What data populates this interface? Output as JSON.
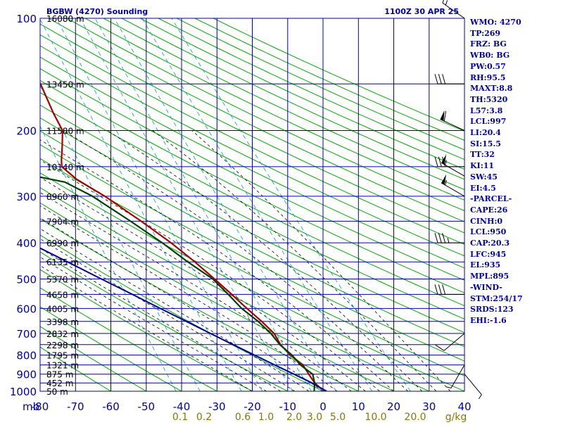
{
  "chart_data": {
    "type": "skew-t log-p sounding",
    "title": "BGBW (4270) Sounding",
    "valid_time": "1100Z 30 APR 25",
    "pressure_axis": {
      "unit_label": "mb",
      "ticks": [
        100,
        200,
        300,
        400,
        500,
        600,
        700,
        800,
        900,
        1000
      ],
      "range": [
        100,
        1000
      ],
      "scale": "log"
    },
    "temperature_axis": {
      "ticks": [
        -80,
        -70,
        -60,
        -50,
        -40,
        -30,
        -20,
        -10,
        0,
        10,
        20,
        30,
        40
      ],
      "range": [
        -80,
        40
      ]
    },
    "mixing_ratio_axis": {
      "labels": [
        "0.1",
        "0.2",
        "0.6",
        "1.0",
        "2.0",
        "3.0",
        "5.0",
        "10.0",
        "20.0"
      ],
      "values": [
        0.1,
        0.2,
        0.6,
        1.0,
        2.0,
        3.0,
        5.0,
        10.0,
        20.0
      ],
      "unit": "g/kg"
    },
    "height_labels": [
      {
        "p": 100,
        "text": "16080 m"
      },
      {
        "p": 150,
        "text": "13450 m"
      },
      {
        "p": 200,
        "text": "11580 m"
      },
      {
        "p": 250,
        "text": "10140 m"
      },
      {
        "p": 300,
        "text": "8960 m"
      },
      {
        "p": 350,
        "text": "7904 m"
      },
      {
        "p": 400,
        "text": "6990 m"
      },
      {
        "p": 450,
        "text": "6135 m"
      },
      {
        "p": 500,
        "text": "5370 m"
      },
      {
        "p": 550,
        "text": "4658 m"
      },
      {
        "p": 600,
        "text": "4005 m"
      },
      {
        "p": 650,
        "text": "3398 m"
      },
      {
        "p": 700,
        "text": "2832 m"
      },
      {
        "p": 750,
        "text": "2298 m"
      },
      {
        "p": 800,
        "text": "1795 m"
      },
      {
        "p": 850,
        "text": "1321 m"
      },
      {
        "p": 900,
        "text": "875 m"
      },
      {
        "p": 950,
        "text": "452 m"
      },
      {
        "p": 1000,
        "text": "50 m"
      }
    ],
    "series": [
      {
        "name": "Temperature",
        "color": "#aa0000",
        "points": [
          [
            1000,
            1.0
          ],
          [
            980,
            -0.5
          ],
          [
            950,
            -1.6
          ],
          [
            900,
            -2.5
          ],
          [
            850,
            -3.3
          ],
          [
            800,
            -6.0
          ],
          [
            750,
            -7.8
          ],
          [
            700,
            -8.6
          ],
          [
            650,
            -11.0
          ],
          [
            600,
            -14.0
          ],
          [
            550,
            -17.0
          ],
          [
            500,
            -20.5
          ],
          [
            450,
            -24.5
          ],
          [
            400,
            -29.5
          ],
          [
            350,
            -36.0
          ],
          [
            300,
            -44.0
          ],
          [
            270,
            -50.5
          ],
          [
            250,
            -53.5
          ],
          [
            240,
            -53.0
          ],
          [
            220,
            -51.5
          ],
          [
            200,
            -50.0
          ],
          [
            180,
            -51.0
          ],
          [
            150,
            -52.0
          ],
          [
            120,
            -53.5
          ],
          [
            100,
            -55.0
          ]
        ]
      },
      {
        "name": "Dewpoint",
        "color": "#004000",
        "points": [
          [
            1000,
            -2.5
          ],
          [
            950,
            -1.6
          ],
          [
            900,
            -1.4
          ],
          [
            850,
            -4.0
          ],
          [
            800,
            -5.5
          ],
          [
            750,
            -8.0
          ],
          [
            700,
            -9.5
          ],
          [
            650,
            -12.0
          ],
          [
            600,
            -15.5
          ],
          [
            550,
            -18.0
          ],
          [
            500,
            -21.0
          ],
          [
            450,
            -26.5
          ],
          [
            400,
            -32.0
          ],
          [
            350,
            -39.0
          ],
          [
            300,
            -47.5
          ],
          [
            275,
            -54.0
          ],
          [
            260,
            -66.0
          ],
          [
            250,
            -67.5
          ],
          [
            230,
            -70.5
          ],
          [
            200,
            -79.0
          ]
        ]
      },
      {
        "name": "Parcel",
        "color": "#000099",
        "points": [
          [
            1000,
            1.0
          ],
          [
            950,
            -2.4
          ],
          [
            900,
            -6.7
          ],
          [
            850,
            -11.3
          ],
          [
            800,
            -16.1
          ],
          [
            750,
            -21.2
          ],
          [
            700,
            -26.6
          ],
          [
            650,
            -32.3
          ],
          [
            600,
            -38.5
          ],
          [
            550,
            -45.1
          ],
          [
            500,
            -52.5
          ],
          [
            450,
            -60.5
          ],
          [
            400,
            -69.5
          ],
          [
            350,
            -79.8
          ],
          [
            300,
            -91.8
          ],
          [
            262,
            -103.0
          ]
        ]
      }
    ],
    "winds": [
      {
        "p": 100,
        "dir": 305,
        "spd": 15
      },
      {
        "p": 150,
        "dir": 270,
        "spd": 30
      },
      {
        "p": 200,
        "dir": 295,
        "spd": 60
      },
      {
        "p": 250,
        "dir": 270,
        "spd": 30
      },
      {
        "p": 265,
        "dir": 300,
        "spd": 55
      },
      {
        "p": 300,
        "dir": 300,
        "spd": 55
      },
      {
        "p": 400,
        "dir": 270,
        "spd": 35
      },
      {
        "p": 550,
        "dir": 270,
        "spd": 30
      },
      {
        "p": 700,
        "dir": 230,
        "spd": 10
      },
      {
        "p": 850,
        "dir": 210,
        "spd": 5
      },
      {
        "p": 900,
        "dir": 140,
        "spd": 5
      }
    ],
    "indices": [
      "WMO: 4270",
      "TP:269",
      "FRZ: BG",
      "WB0: BG",
      "PW:0.57",
      "RH:95.5",
      "MAXT:8.8",
      "TH:5320",
      "L57:3.8",
      "LCL:997",
      "LI:20.4",
      "SI:15.5",
      "TT:32",
      "KI:11",
      "SW:45",
      "EI:4.5",
      "-PARCEL-",
      "CAPE:26",
      "CINH:0",
      "LCL:950",
      "CAP:20.3",
      "LFC:945",
      "EL:935",
      "MPL:895",
      "-WIND-",
      "STM:254/17",
      "SRDS:123",
      "EHI:-1.6"
    ],
    "colors": {
      "grid": "#0000aa",
      "dry_adiabat": "#00aa00",
      "moist_adiabat": "#000000",
      "mixing_ratio": "#0099cc",
      "temperature": "#aa0000",
      "dewpoint": "#004000",
      "parcel": "#000099",
      "wind": "#000000",
      "axis_label": "#0000aa",
      "mixing_label": "#887700"
    }
  }
}
